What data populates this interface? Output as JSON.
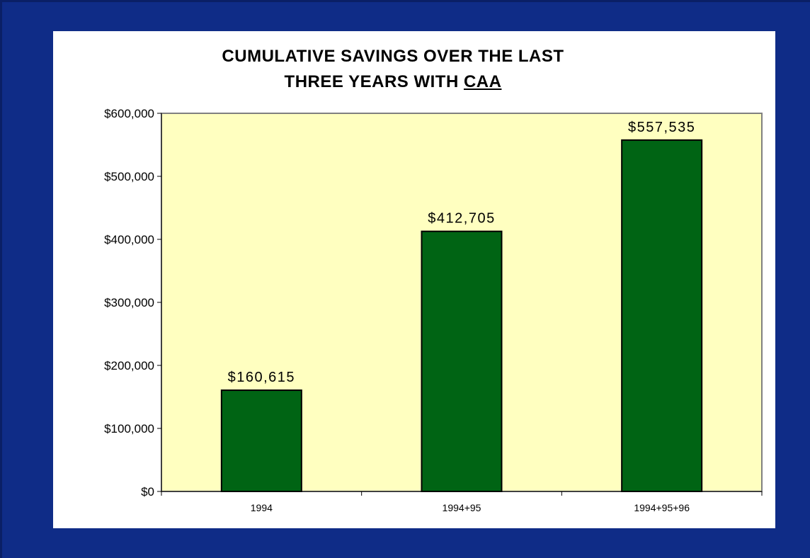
{
  "chart_data": {
    "type": "bar",
    "title": {
      "line1": "CUMULATIVE SAVINGS OVER THE LAST",
      "line2_prefix": "THREE YEARS WITH ",
      "line2_underlined": "CAA"
    },
    "categories": [
      "1994",
      "1994+95",
      "1994+95+96"
    ],
    "values": [
      160615,
      412705,
      557535
    ],
    "data_labels": [
      "$160,615",
      "$412,705",
      "$557,535"
    ],
    "ylim": [
      0,
      600000
    ],
    "y_ticks": [
      0,
      100000,
      200000,
      300000,
      400000,
      500000,
      600000
    ],
    "y_tick_labels": [
      "$0",
      "$100,000",
      "$200,000",
      "$300,000",
      "$400,000",
      "$500,000",
      "$600,000"
    ],
    "xlabel": "",
    "ylabel": "",
    "grid": false,
    "legend": "none",
    "colors": {
      "background": "#0f2c87",
      "plot_area": "#ffffc0",
      "bar_fill": "#006414",
      "bar_stroke": "#000000",
      "plot_border": "#808080"
    }
  }
}
